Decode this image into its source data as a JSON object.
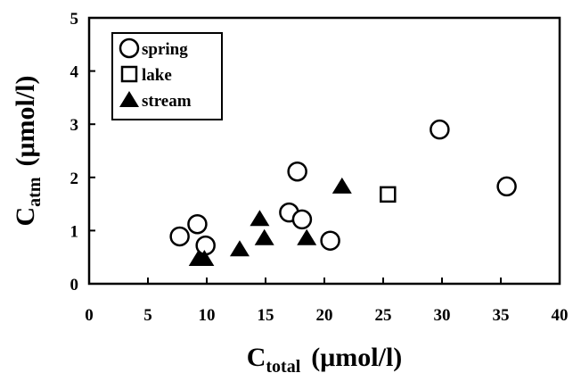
{
  "chart_data": {
    "type": "scatter",
    "xlabel": {
      "main": "C",
      "sub": "total",
      "unit": "(μmol/l)"
    },
    "ylabel": {
      "main": "C",
      "sub": "atm",
      "unit": "(μmol/l)"
    },
    "xlim": [
      0,
      40
    ],
    "xticks": [
      0,
      5,
      10,
      15,
      20,
      25,
      30,
      35,
      40
    ],
    "ylim": [
      0,
      5
    ],
    "yticks": [
      0,
      1,
      2,
      3,
      4,
      5
    ],
    "legend": "upper left",
    "series": [
      {
        "name": "spring",
        "marker": "circle",
        "color": "#000000",
        "x": [
          7.7,
          9.2,
          9.9,
          17.0,
          17.7,
          18.1,
          20.5,
          29.8,
          35.5
        ],
        "values": [
          0.89,
          1.12,
          0.72,
          1.34,
          2.11,
          1.21,
          0.81,
          2.9,
          1.83
        ]
      },
      {
        "name": "lake",
        "marker": "square",
        "color": "#000000",
        "x": [
          25.4
        ],
        "values": [
          1.68
        ]
      },
      {
        "name": "stream",
        "marker": "triangle",
        "color": "#000000",
        "x": [
          9.3,
          9.8,
          12.8,
          14.5,
          14.9,
          18.5,
          21.5
        ],
        "values": [
          0.47,
          0.47,
          0.65,
          1.22,
          0.86,
          0.86,
          1.83
        ]
      }
    ]
  }
}
